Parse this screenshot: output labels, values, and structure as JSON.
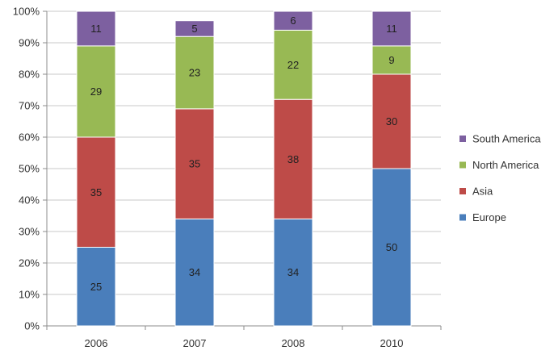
{
  "chart_data": {
    "type": "bar",
    "stacked": true,
    "percent": true,
    "title": "",
    "xlabel": "",
    "ylabel": "",
    "categories": [
      "2006",
      "2007",
      "2008",
      "2010"
    ],
    "ylim": [
      0,
      100
    ],
    "yticks": [
      "0%",
      "10%",
      "20%",
      "30%",
      "40%",
      "50%",
      "60%",
      "70%",
      "80%",
      "90%",
      "100%"
    ],
    "grid": true,
    "legend_position": "right",
    "series": [
      {
        "name": "Europe",
        "color": "#4a7ebb",
        "values": [
          25,
          34,
          34,
          50
        ]
      },
      {
        "name": "Asia",
        "color": "#be4b48",
        "values": [
          35,
          35,
          38,
          30
        ]
      },
      {
        "name": "North America",
        "color": "#98b954",
        "values": [
          29,
          23,
          22,
          9
        ]
      },
      {
        "name": "South America",
        "color": "#7d60a0",
        "values": [
          11,
          5,
          6,
          11
        ]
      }
    ],
    "legend_order": [
      "South America",
      "North America",
      "Asia",
      "Europe"
    ]
  }
}
